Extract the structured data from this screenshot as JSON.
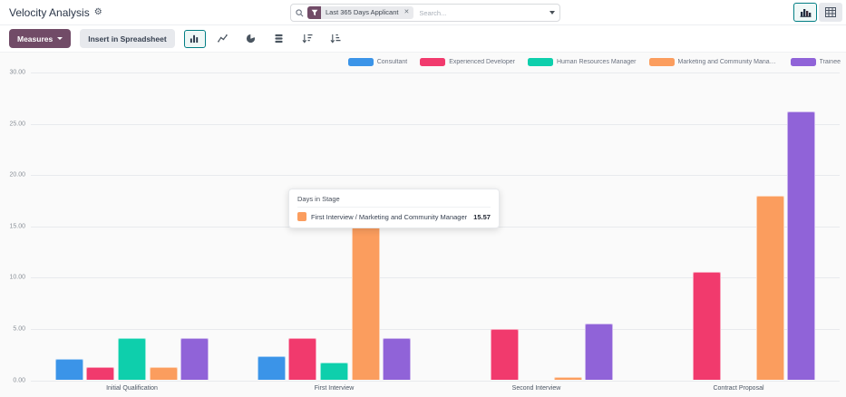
{
  "header": {
    "title": "Velocity Analysis",
    "search": {
      "facet_label": "Last 365 Days Applicant",
      "facet_remove": "✕",
      "placeholder": "Search..."
    }
  },
  "toolbar": {
    "measures_label": "Measures",
    "insert_label": "Insert in Spreadsheet"
  },
  "tooltip": {
    "title": "Days in Stage",
    "label": "First Interview / Marketing and Community Manager",
    "value": "15.57",
    "color": "#fb9d5e"
  },
  "chart_data": {
    "type": "bar",
    "title": "Velocity Analysis",
    "measure": "Days in Stage",
    "categories": [
      "Initial Qualification",
      "First Interview",
      "Second Interview",
      "Contract Proposal"
    ],
    "series": [
      {
        "name": "Consultant",
        "color": "#3b94e8",
        "values": [
          2.1,
          2.3,
          0,
          0
        ]
      },
      {
        "name": "Experienced Developer",
        "color": "#f13a6d",
        "values": [
          1.3,
          4.1,
          5.0,
          10.6
        ]
      },
      {
        "name": "Human Resources Manager",
        "color": "#0ecfac",
        "values": [
          4.1,
          1.7,
          0,
          0
        ]
      },
      {
        "name": "Marketing and Community Manager",
        "color": "#fb9d5e",
        "values": [
          1.3,
          15.57,
          0.3,
          18.0
        ]
      },
      {
        "name": "Trainee",
        "color": "#9063d8",
        "values": [
          4.1,
          4.1,
          5.5,
          26.2
        ]
      }
    ],
    "ylim": [
      0,
      30
    ],
    "yticks": [
      "0.00",
      "5.00",
      "10.00",
      "15.00",
      "20.00",
      "25.00",
      "30.00"
    ],
    "grid": true,
    "legend_position": "top-right"
  }
}
